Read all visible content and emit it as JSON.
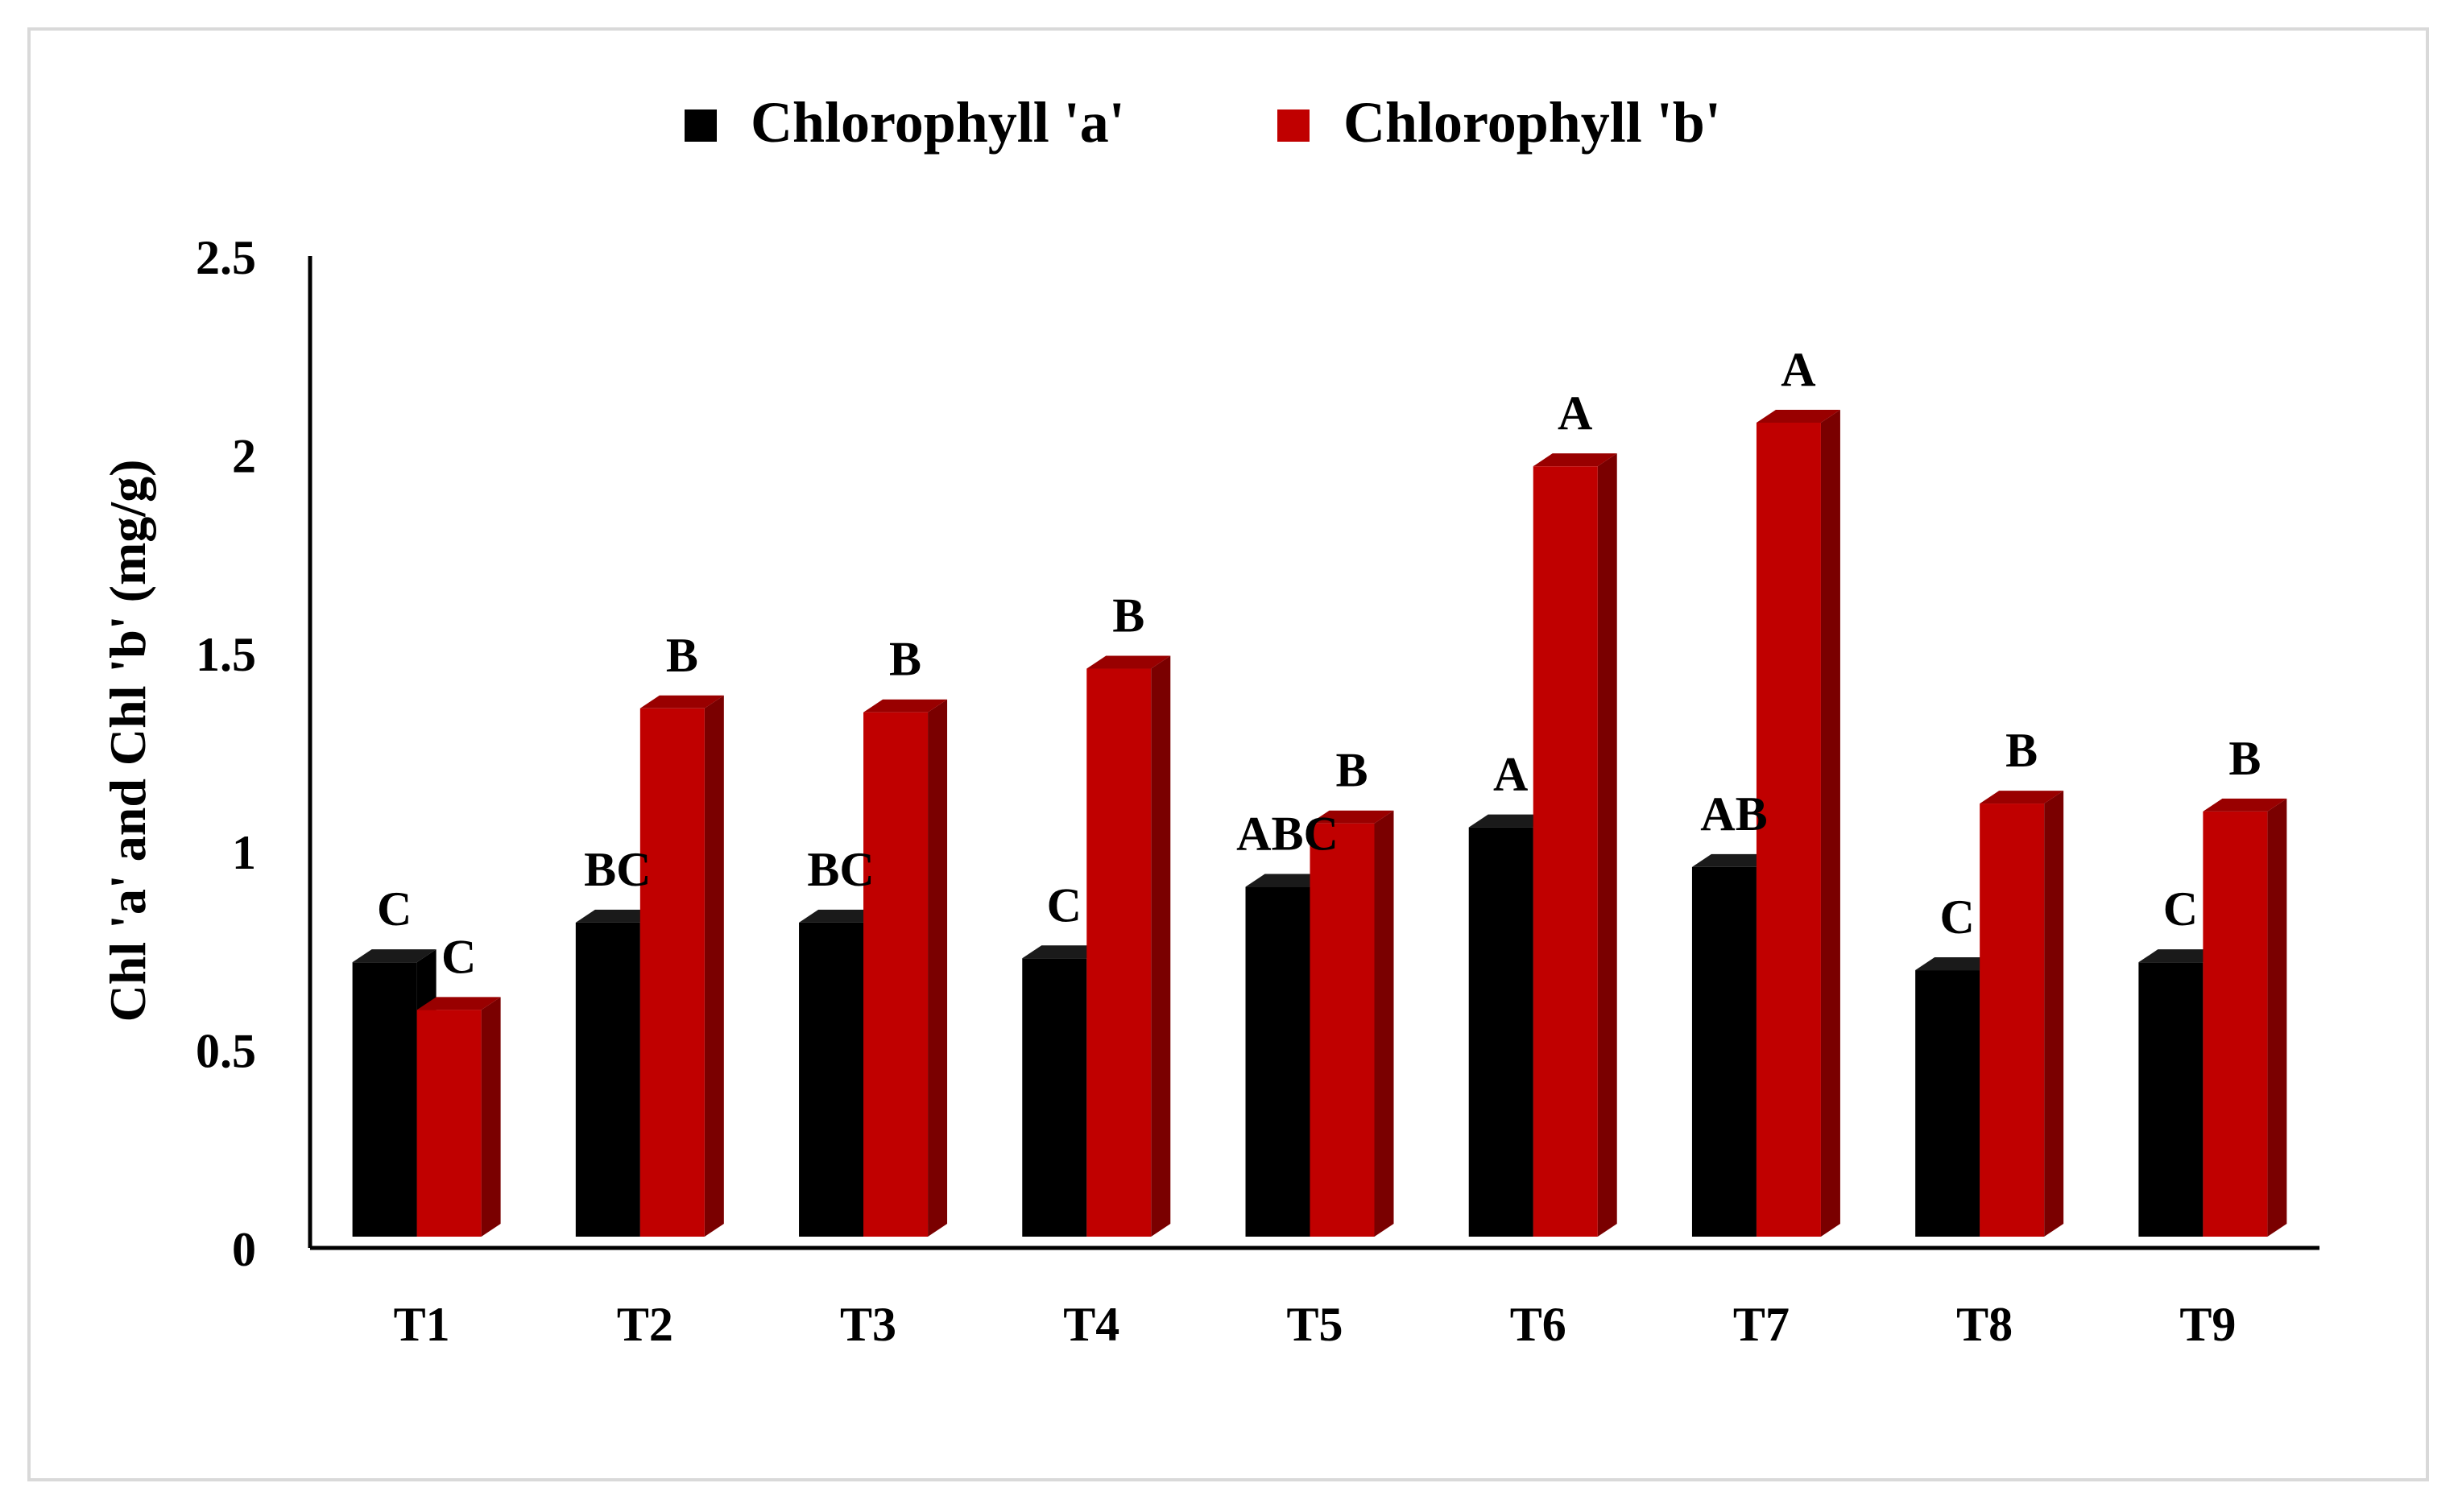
{
  "chart_data": {
    "type": "bar",
    "style": "3d-clustered",
    "ylabel": "Chl 'a' and Chl 'b' (mg/g)",
    "xlabel": "",
    "ylim": [
      0,
      2.5
    ],
    "yticks": [
      "0",
      "0.5",
      "1",
      "1.5",
      "2",
      "2.5"
    ],
    "ytick_values": [
      0,
      0.5,
      1,
      1.5,
      2,
      2.5
    ],
    "grid": false,
    "legend_position": "top",
    "categories": [
      "T1",
      "T2",
      "T3",
      "T4",
      "T5",
      "T6",
      "T7",
      "T8",
      "T9"
    ],
    "series": [
      {
        "name": "Chlorophyll 'a'",
        "color": "#000000",
        "values": [
          0.72,
          0.82,
          0.82,
          0.73,
          0.91,
          1.06,
          0.96,
          0.7,
          0.72
        ],
        "labels": [
          "C",
          "BC",
          "BC",
          "C",
          "ABC",
          "A",
          "AB",
          "C",
          "C"
        ]
      },
      {
        "name": "Chlorophyll 'b'",
        "color": "#c00000",
        "values": [
          0.6,
          1.36,
          1.35,
          1.46,
          1.07,
          1.97,
          2.08,
          1.12,
          1.1
        ],
        "labels": [
          "C",
          "B",
          "B",
          "B",
          "B",
          "A",
          "A",
          "B",
          "B"
        ]
      }
    ]
  }
}
